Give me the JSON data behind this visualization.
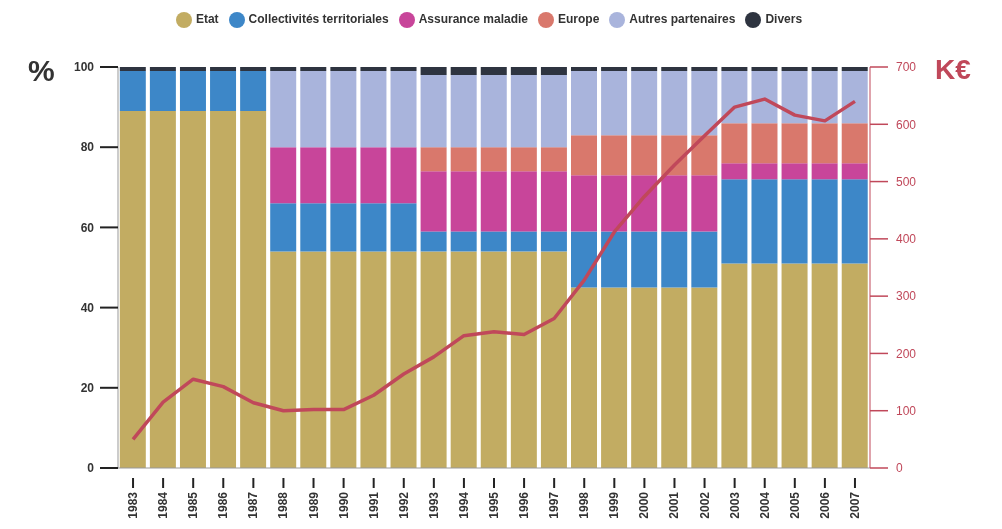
{
  "chart_data": {
    "type": "bar",
    "stacked": true,
    "ylabel": "%",
    "y2label": "K€",
    "categories": [
      "1983",
      "1984",
      "1985",
      "1986",
      "1987",
      "1988",
      "1989",
      "1990",
      "1991",
      "1992",
      "1993",
      "1994",
      "1995",
      "1996",
      "1997",
      "1998",
      "1999",
      "2000",
      "2001",
      "2002",
      "2003",
      "2004",
      "2005",
      "2006",
      "2007"
    ],
    "series": [
      {
        "name": "Etat",
        "color": "#c2ac62",
        "values": [
          89,
          89,
          89,
          89,
          89,
          54,
          54,
          54,
          54,
          54,
          54,
          54,
          54,
          54,
          54,
          45,
          45,
          45,
          45,
          45,
          51,
          51,
          51,
          51,
          51
        ]
      },
      {
        "name": "Collectivités territoriales",
        "color": "#3d87c8",
        "values": [
          10,
          10,
          10,
          10,
          10,
          12,
          12,
          12,
          12,
          12,
          5,
          5,
          5,
          5,
          5,
          14,
          14,
          14,
          14,
          14,
          21,
          21,
          21,
          21,
          21
        ]
      },
      {
        "name": "Assurance maladie",
        "color": "#c8459a",
        "values": [
          0,
          0,
          0,
          0,
          0,
          14,
          14,
          14,
          14,
          14,
          15,
          15,
          15,
          15,
          15,
          14,
          14,
          14,
          14,
          14,
          4,
          4,
          4,
          4,
          4
        ]
      },
      {
        "name": "Europe",
        "color": "#d9786c",
        "values": [
          0,
          0,
          0,
          0,
          0,
          0,
          0,
          0,
          0,
          0,
          6,
          6,
          6,
          6,
          6,
          10,
          10,
          10,
          10,
          10,
          10,
          10,
          10,
          10,
          10
        ]
      },
      {
        "name": "Autres partenaires",
        "color": "#a9b4dc",
        "values": [
          0,
          0,
          0,
          0,
          0,
          19,
          19,
          19,
          19,
          19,
          18,
          18,
          18,
          18,
          18,
          16,
          16,
          16,
          16,
          16,
          13,
          13,
          13,
          13,
          13
        ]
      },
      {
        "name": "Divers",
        "color": "#2e3440",
        "values": [
          1,
          1,
          1,
          1,
          1,
          1,
          1,
          1,
          1,
          1,
          2,
          2,
          2,
          2,
          2,
          1,
          1,
          1,
          1,
          1,
          1,
          1,
          1,
          1,
          1
        ]
      },
      {
        "type": "line",
        "axis": "y2",
        "color": "#c0485a",
        "values": [
          50,
          115,
          155,
          142,
          114,
          100,
          102,
          102,
          127,
          164,
          194,
          231,
          238,
          233,
          261,
          328,
          412,
          474,
          529,
          580,
          630,
          644,
          616,
          606,
          640
        ]
      }
    ],
    "ylim": [
      0,
      100
    ],
    "yticks": [
      0,
      20,
      40,
      60,
      80,
      100
    ],
    "y2lim": [
      0,
      700
    ],
    "y2ticks": [
      0,
      100,
      200,
      300,
      400,
      500,
      600,
      700
    ],
    "legend": "top",
    "grid": false
  }
}
